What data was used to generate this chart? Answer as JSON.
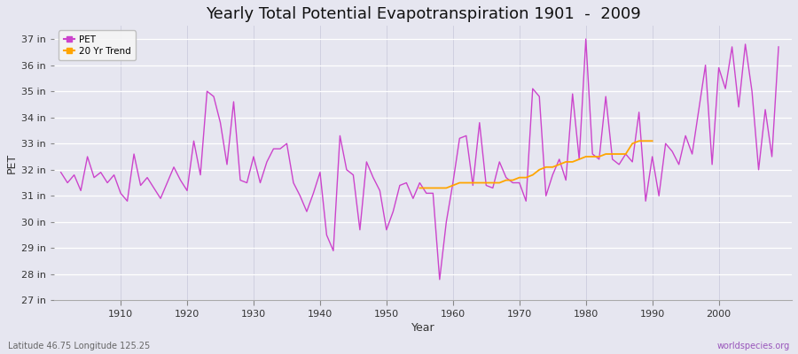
{
  "title": "Yearly Total Potential Evapotranspiration 1901  -  2009",
  "ylabel": "PET",
  "xlabel": "Year",
  "bottom_left_label": "Latitude 46.75 Longitude 125.25",
  "bottom_right_label": "worldspecies.org",
  "pet_color": "#CC44CC",
  "trend_color": "#FFA500",
  "bg_color": "#E6E6F0",
  "fig_bg_color": "#E6E6F0",
  "ylim_min": 27,
  "ylim_max": 37.5,
  "yticks": [
    27,
    28,
    29,
    30,
    31,
    32,
    33,
    34,
    35,
    36,
    37
  ],
  "ytick_labels": [
    "27 in",
    "28 in",
    "29 in",
    "30 in",
    "31 in",
    "32 in",
    "33 in",
    "34 in",
    "35 in",
    "36 in",
    "37 in"
  ],
  "xlim_min": 1900,
  "xlim_max": 2011,
  "xticks": [
    1910,
    1920,
    1930,
    1940,
    1950,
    1960,
    1970,
    1980,
    1990,
    2000
  ],
  "pet_years": [
    1901,
    1902,
    1903,
    1904,
    1905,
    1906,
    1907,
    1908,
    1909,
    1910,
    1911,
    1912,
    1913,
    1914,
    1915,
    1916,
    1917,
    1918,
    1919,
    1920,
    1921,
    1922,
    1923,
    1924,
    1925,
    1926,
    1927,
    1928,
    1929,
    1930,
    1931,
    1932,
    1933,
    1934,
    1935,
    1936,
    1937,
    1938,
    1939,
    1940,
    1941,
    1942,
    1943,
    1944,
    1945,
    1946,
    1947,
    1948,
    1949,
    1950,
    1951,
    1952,
    1953,
    1954,
    1955,
    1956,
    1957,
    1958,
    1959,
    1960,
    1961,
    1962,
    1963,
    1964,
    1965,
    1966,
    1967,
    1968,
    1969,
    1970,
    1971,
    1972,
    1973,
    1974,
    1975,
    1976,
    1977,
    1978,
    1979,
    1980,
    1981,
    1982,
    1983,
    1984,
    1985,
    1986,
    1987,
    1988,
    1989,
    1990,
    1991,
    1992,
    1993,
    1994,
    1995,
    1996,
    1997,
    1998,
    1999,
    2000,
    2001,
    2002,
    2003,
    2004,
    2005,
    2006,
    2007,
    2008,
    2009
  ],
  "pet_values": [
    31.9,
    31.5,
    31.8,
    31.2,
    32.5,
    31.7,
    31.9,
    31.5,
    31.8,
    31.1,
    30.8,
    32.6,
    31.4,
    31.7,
    31.3,
    30.9,
    31.5,
    32.1,
    31.6,
    31.2,
    33.1,
    31.8,
    35.0,
    34.8,
    33.8,
    32.2,
    34.6,
    31.6,
    31.5,
    32.5,
    31.5,
    32.3,
    32.8,
    32.8,
    33.0,
    31.5,
    31.0,
    30.4,
    31.1,
    31.9,
    29.5,
    28.9,
    33.3,
    32.0,
    31.8,
    29.7,
    32.3,
    31.7,
    31.2,
    29.7,
    30.4,
    31.4,
    31.5,
    30.9,
    31.5,
    31.1,
    31.1,
    27.8,
    30.0,
    31.5,
    33.2,
    33.3,
    31.4,
    33.8,
    31.4,
    31.3,
    32.3,
    31.7,
    31.5,
    31.5,
    30.8,
    35.1,
    34.8,
    31.0,
    31.8,
    32.4,
    31.6,
    34.9,
    32.4,
    37.0,
    32.6,
    32.4,
    34.8,
    32.4,
    32.2,
    32.6,
    32.3,
    34.2,
    30.8,
    32.5,
    31.0,
    33.0,
    32.7,
    32.2,
    33.3,
    32.6,
    34.3,
    36.0,
    32.2,
    35.9,
    35.1,
    36.7,
    34.4,
    36.8,
    35.0,
    32.0,
    34.3,
    32.5,
    36.7
  ],
  "trend_years": [
    1955,
    1956,
    1957,
    1958,
    1959,
    1960,
    1961,
    1962,
    1963,
    1964,
    1965,
    1966,
    1967,
    1968,
    1969,
    1970,
    1971,
    1972,
    1973,
    1974,
    1975,
    1976,
    1977,
    1978,
    1979,
    1980,
    1981,
    1982,
    1983,
    1984,
    1985,
    1986,
    1987,
    1988,
    1989,
    1990
  ],
  "trend_values": [
    31.3,
    31.3,
    31.3,
    31.3,
    31.3,
    31.4,
    31.5,
    31.5,
    31.5,
    31.5,
    31.5,
    31.5,
    31.5,
    31.6,
    31.6,
    31.7,
    31.7,
    31.8,
    32.0,
    32.1,
    32.1,
    32.2,
    32.3,
    32.3,
    32.4,
    32.5,
    32.5,
    32.5,
    32.6,
    32.6,
    32.6,
    32.6,
    33.0,
    33.1,
    33.1,
    33.1
  ],
  "legend_pet_label": "PET",
  "legend_trend_label": "20 Yr Trend",
  "title_fontsize": 13,
  "tick_fontsize": 8,
  "label_fontsize": 9
}
